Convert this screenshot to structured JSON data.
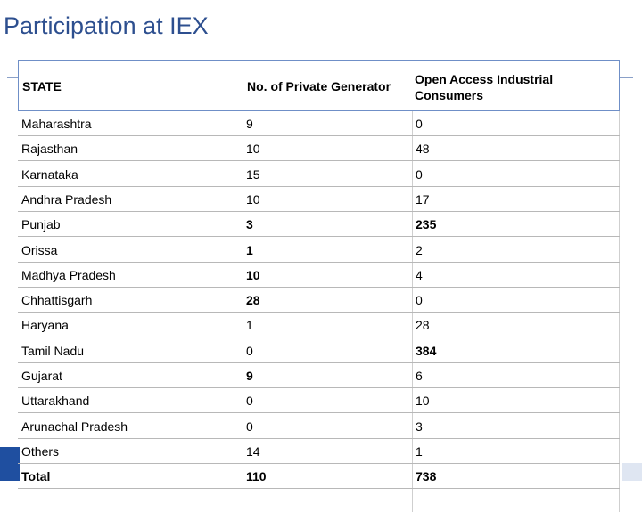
{
  "title": "Participation at IEX",
  "table": {
    "header": [
      "STATE",
      "No. of Private Generator",
      "Open Access Industrial Consumers"
    ],
    "rows": [
      [
        "Maharashtra",
        9,
        0
      ],
      [
        "Rajasthan",
        10,
        48
      ],
      [
        "Karnataka",
        15,
        0
      ],
      [
        "Andhra Pradesh",
        10,
        17
      ],
      [
        "Punjab",
        3,
        235
      ],
      [
        "Orissa",
        1,
        2
      ],
      [
        "Madhya Pradesh",
        10,
        4
      ],
      [
        "Chhattisgarh",
        28,
        0
      ],
      [
        "Haryana",
        1,
        28
      ],
      [
        "Tamil Nadu",
        0,
        384
      ],
      [
        "Gujarat",
        9,
        6
      ],
      [
        "Uttarakhand",
        0,
        10
      ],
      [
        "Arunachal Pradesh",
        0,
        3
      ],
      [
        "Others",
        14,
        1
      ],
      [
        "Total",
        110,
        738
      ]
    ]
  }
}
